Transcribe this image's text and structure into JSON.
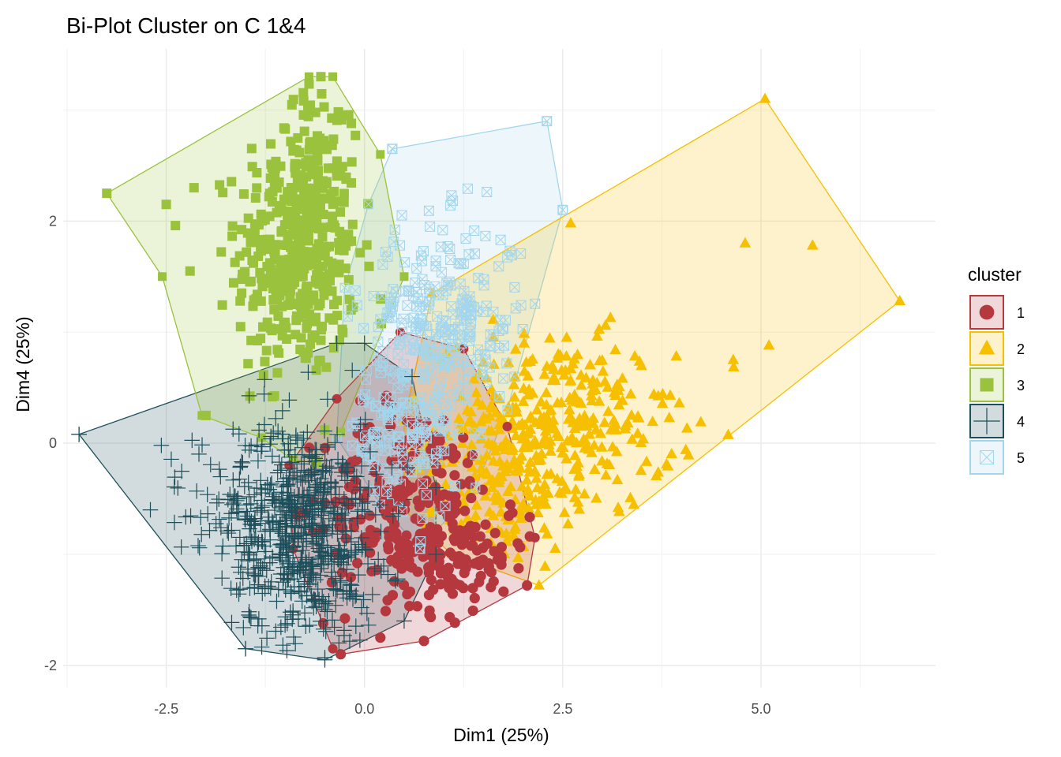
{
  "chart_data": {
    "type": "scatter",
    "title": "Bi-Plot Cluster on C 1&4",
    "xlabel": "Dim1 (25%)",
    "ylabel": "Dim4 (25%)",
    "xlim": [
      -3.8,
      7.2
    ],
    "ylim": [
      -2.2,
      3.55
    ],
    "x_ticks": [
      {
        "value": -2.5,
        "label": "-2.5"
      },
      {
        "value": 0,
        "label": "0.0"
      },
      {
        "value": 2.5,
        "label": "2.5"
      },
      {
        "value": 5,
        "label": "5.0"
      }
    ],
    "y_ticks": [
      {
        "value": -2,
        "label": "-2"
      },
      {
        "value": 0,
        "label": "0"
      },
      {
        "value": 2,
        "label": "2"
      }
    ],
    "grid": true,
    "legend": {
      "title": "cluster",
      "placement": "right"
    },
    "series": [
      {
        "name": "1",
        "marker": "circle",
        "color": "#b5383f",
        "hull": [
          [
            -0.3,
            -1.9
          ],
          [
            0.75,
            -1.78
          ],
          [
            2.05,
            -1.28
          ],
          [
            2.15,
            -0.85
          ],
          [
            1.8,
            0.15
          ],
          [
            1.25,
            0.85
          ],
          [
            0.45,
            1.0
          ],
          [
            -0.35,
            0.4
          ],
          [
            -0.95,
            -0.2
          ],
          [
            -0.9,
            -0.95
          ],
          [
            -0.4,
            -1.85
          ]
        ],
        "centroid": [
          0.45,
          -0.45
        ],
        "clusters": [
          {
            "cx": 0.6,
            "cy": -0.55,
            "sx": 0.55,
            "sy": 0.45,
            "n": 240
          },
          {
            "cx": 1.2,
            "cy": -1.05,
            "sx": 0.45,
            "sy": 0.25,
            "n": 90
          }
        ],
        "outliers": [
          [
            -0.3,
            -1.9
          ],
          [
            0.75,
            -1.78
          ],
          [
            2.05,
            -1.28
          ],
          [
            0.2,
            -1.75
          ]
        ]
      },
      {
        "name": "2",
        "marker": "triangle",
        "color": "#f6bf00",
        "hull": [
          [
            2.2,
            -1.28
          ],
          [
            6.75,
            1.28
          ],
          [
            5.05,
            3.1
          ],
          [
            0.85,
            1.35
          ],
          [
            0.5,
            0.2
          ],
          [
            0.5,
            -0.6
          ],
          [
            1.1,
            -1.0
          ]
        ],
        "centroid": [
          2.3,
          0.2
        ],
        "clusters": [
          {
            "cx": 2.4,
            "cy": 0.15,
            "sx": 0.75,
            "sy": 0.4,
            "n": 330
          },
          {
            "cx": 1.7,
            "cy": -0.4,
            "sx": 0.45,
            "sy": 0.35,
            "n": 120
          }
        ],
        "outliers": [
          [
            5.05,
            3.1
          ],
          [
            6.75,
            1.28
          ],
          [
            4.8,
            1.8
          ],
          [
            5.65,
            1.78
          ],
          [
            5.1,
            0.88
          ],
          [
            2.6,
            1.98
          ],
          [
            2.2,
            -1.28
          ],
          [
            4.65,
            0.75
          ]
        ]
      },
      {
        "name": "3",
        "marker": "square",
        "color": "#9bc23c",
        "hull": [
          [
            -3.25,
            2.25
          ],
          [
            -0.7,
            3.3
          ],
          [
            -0.4,
            3.3
          ],
          [
            0.2,
            2.6
          ],
          [
            0.5,
            1.5
          ],
          [
            -0.3,
            0.1
          ],
          [
            -0.6,
            -0.18
          ],
          [
            -0.9,
            -0.15
          ],
          [
            -1.3,
            0.05
          ],
          [
            -2.05,
            0.25
          ],
          [
            -2.55,
            1.5
          ]
        ],
        "centroid": [
          -0.8,
          1.6
        ],
        "clusters": [
          {
            "cx": -0.85,
            "cy": 1.7,
            "sx": 0.38,
            "sy": 0.55,
            "n": 420
          },
          {
            "cx": -0.6,
            "cy": 2.6,
            "sx": 0.25,
            "sy": 0.3,
            "n": 60
          }
        ],
        "outliers": [
          [
            -3.25,
            2.25
          ],
          [
            -2.5,
            2.15
          ],
          [
            -2.15,
            2.3
          ],
          [
            -2.0,
            0.25
          ],
          [
            -2.2,
            1.55
          ],
          [
            -0.55,
            3.3
          ]
        ]
      },
      {
        "name": "4",
        "marker": "plus",
        "color": "#1d4e5a",
        "hull": [
          [
            -3.6,
            0.08
          ],
          [
            -0.35,
            0.9
          ],
          [
            0.0,
            0.9
          ],
          [
            0.6,
            0.6
          ],
          [
            0.9,
            -0.4
          ],
          [
            0.9,
            -1.0
          ],
          [
            0.5,
            -1.6
          ],
          [
            -0.5,
            -1.95
          ],
          [
            -1.5,
            -1.85
          ]
        ],
        "centroid": [
          -0.8,
          -0.75
        ],
        "clusters": [
          {
            "cx": -0.75,
            "cy": -0.8,
            "sx": 0.45,
            "sy": 0.5,
            "n": 600
          },
          {
            "cx": -1.8,
            "cy": -0.55,
            "sx": 0.5,
            "sy": 0.35,
            "n": 70
          }
        ],
        "outliers": [
          [
            -3.6,
            0.08
          ],
          [
            -2.7,
            -0.6
          ],
          [
            -0.5,
            -1.93
          ],
          [
            -1.5,
            -1.85
          ]
        ]
      },
      {
        "name": "5",
        "marker": "square-cross",
        "color": "#a3d6ec",
        "hull": [
          [
            0.35,
            2.65
          ],
          [
            2.3,
            2.9
          ],
          [
            2.5,
            2.1
          ],
          [
            1.8,
            0.3
          ],
          [
            1.4,
            -0.4
          ],
          [
            0.7,
            -0.95
          ],
          [
            0.2,
            -0.55
          ],
          [
            -0.35,
            0.05
          ],
          [
            -0.25,
            1.4
          ],
          [
            0.05,
            2.15
          ]
        ],
        "centroid": [
          0.75,
          1.0
        ],
        "clusters": [
          {
            "cx": 1.0,
            "cy": 1.1,
            "sx": 0.5,
            "sy": 0.45,
            "n": 260
          },
          {
            "cx": 0.5,
            "cy": 0.1,
            "sx": 0.35,
            "sy": 0.4,
            "n": 140
          }
        ],
        "outliers": [
          [
            0.35,
            2.65
          ],
          [
            2.3,
            2.9
          ],
          [
            2.5,
            2.1
          ],
          [
            0.7,
            -0.95
          ]
        ]
      }
    ]
  }
}
